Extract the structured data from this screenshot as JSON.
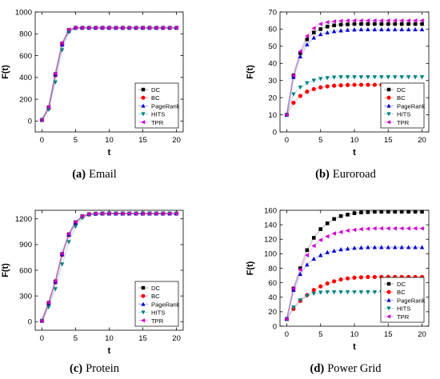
{
  "figure": {
    "legend_labels": [
      "DC",
      "BC",
      "PageRank",
      "HITS",
      "TPR"
    ],
    "series_colors": [
      "#000000",
      "#ff0000",
      "#0000cc",
      "#008080",
      "#cc00cc"
    ],
    "series_markers": [
      "square",
      "circle",
      "triangle-up",
      "triangle-down",
      "triangle-left"
    ]
  },
  "chart_data": [
    {
      "type": "line",
      "caption_tag": "(a)",
      "caption_name": "Email",
      "xlabel": "t",
      "ylabel": "F(t)",
      "xlim": [
        -1,
        21
      ],
      "ylim": [
        -100,
        1000
      ],
      "xticks": [
        0,
        5,
        10,
        15,
        20
      ],
      "yticks": [
        0,
        200,
        400,
        600,
        800,
        1000
      ],
      "grid": false,
      "legend_position": "bottom-right",
      "x": [
        0,
        1,
        2,
        3,
        4,
        5,
        6,
        7,
        8,
        9,
        10,
        11,
        12,
        13,
        14,
        15,
        16,
        17,
        18,
        19,
        20
      ],
      "series": [
        {
          "name": "DC",
          "values": [
            10,
            125,
            430,
            710,
            835,
            855,
            855,
            855,
            855,
            855,
            855,
            855,
            855,
            855,
            855,
            855,
            855,
            855,
            855,
            855,
            855
          ]
        },
        {
          "name": "BC",
          "values": [
            10,
            115,
            420,
            705,
            832,
            855,
            855,
            855,
            855,
            855,
            855,
            855,
            855,
            855,
            855,
            855,
            855,
            855,
            855,
            855,
            855
          ]
        },
        {
          "name": "PageRank",
          "values": [
            10,
            120,
            425,
            700,
            825,
            855,
            855,
            855,
            855,
            855,
            855,
            855,
            855,
            855,
            855,
            855,
            855,
            855,
            855,
            855,
            855
          ]
        },
        {
          "name": "HITS",
          "values": [
            10,
            105,
            355,
            650,
            815,
            852,
            855,
            855,
            855,
            855,
            855,
            855,
            855,
            855,
            855,
            855,
            855,
            855,
            855,
            855,
            855
          ]
        },
        {
          "name": "TPR",
          "values": [
            10,
            130,
            435,
            715,
            840,
            856,
            856,
            856,
            856,
            856,
            856,
            856,
            856,
            856,
            856,
            856,
            856,
            856,
            856,
            856,
            856
          ]
        }
      ]
    },
    {
      "type": "line",
      "caption_tag": "(b)",
      "caption_name": "Euroroad",
      "xlabel": "t",
      "ylabel": "F(t)",
      "xlim": [
        -1,
        21
      ],
      "ylim": [
        0,
        70
      ],
      "xticks": [
        0,
        5,
        10,
        15,
        20
      ],
      "yticks": [
        0,
        10,
        20,
        30,
        40,
        50,
        60,
        70
      ],
      "grid": false,
      "legend_position": "bottom-right",
      "x": [
        0,
        1,
        2,
        3,
        4,
        5,
        6,
        7,
        8,
        9,
        10,
        11,
        12,
        13,
        14,
        15,
        16,
        17,
        18,
        19,
        20
      ],
      "series": [
        {
          "name": "DC",
          "values": [
            10,
            33,
            46,
            54,
            58,
            60,
            61.5,
            62.2,
            62.6,
            62.8,
            63,
            63,
            63,
            63,
            63,
            63,
            63,
            63,
            63,
            63,
            63
          ]
        },
        {
          "name": "BC",
          "values": [
            10,
            17,
            21,
            23.5,
            25,
            26,
            26.6,
            27,
            27.2,
            27.4,
            27.5,
            27.5,
            27.5,
            27.5,
            27.5,
            27.5,
            27.5,
            27.5,
            27.5,
            27.5,
            27.5
          ]
        },
        {
          "name": "PageRank",
          "values": [
            10,
            32,
            44,
            51,
            55,
            57,
            58,
            58.7,
            59.2,
            59.5,
            59.7,
            59.8,
            59.8,
            59.8,
            59.8,
            59.8,
            59.8,
            59.8,
            59.8,
            59.8,
            59.8
          ]
        },
        {
          "name": "HITS",
          "values": [
            10,
            22,
            26,
            28.5,
            30,
            31,
            31.5,
            31.8,
            32,
            32,
            32,
            32,
            32,
            32,
            32,
            32,
            32,
            32,
            32,
            32,
            32
          ]
        },
        {
          "name": "TPR",
          "values": [
            10,
            33,
            47,
            56,
            60.5,
            63,
            64,
            64.5,
            64.8,
            65,
            65,
            65,
            65,
            65,
            65,
            65,
            65,
            65,
            65,
            65,
            65
          ]
        }
      ]
    },
    {
      "type": "line",
      "caption_tag": "(c)",
      "caption_name": "Protein",
      "xlabel": "t",
      "ylabel": "F(t)",
      "xlim": [
        -1,
        21
      ],
      "ylim": [
        -100,
        1300
      ],
      "xticks": [
        0,
        5,
        10,
        15,
        20
      ],
      "yticks": [
        0,
        300,
        600,
        900,
        1200
      ],
      "grid": false,
      "legend_position": "bottom-right",
      "x": [
        0,
        1,
        2,
        3,
        4,
        5,
        6,
        7,
        8,
        9,
        10,
        11,
        12,
        13,
        14,
        15,
        16,
        17,
        18,
        19,
        20
      ],
      "series": [
        {
          "name": "DC",
          "values": [
            10,
            220,
            470,
            790,
            1020,
            1160,
            1230,
            1255,
            1260,
            1262,
            1262,
            1262,
            1262,
            1262,
            1262,
            1262,
            1262,
            1262,
            1262,
            1262,
            1262
          ]
        },
        {
          "name": "BC",
          "values": [
            10,
            210,
            460,
            780,
            1010,
            1150,
            1225,
            1252,
            1260,
            1262,
            1262,
            1262,
            1262,
            1262,
            1262,
            1262,
            1262,
            1262,
            1262,
            1262,
            1262
          ]
        },
        {
          "name": "PageRank",
          "values": [
            10,
            215,
            465,
            785,
            1015,
            1155,
            1228,
            1254,
            1260,
            1262,
            1262,
            1262,
            1262,
            1262,
            1262,
            1262,
            1262,
            1262,
            1262,
            1262,
            1262
          ]
        },
        {
          "name": "HITS",
          "values": [
            10,
            170,
            380,
            670,
            930,
            1110,
            1210,
            1248,
            1258,
            1262,
            1262,
            1262,
            1262,
            1262,
            1262,
            1262,
            1262,
            1262,
            1262,
            1262,
            1262
          ]
        },
        {
          "name": "TPR",
          "values": [
            10,
            225,
            475,
            795,
            1025,
            1165,
            1232,
            1256,
            1261,
            1262,
            1262,
            1262,
            1262,
            1262,
            1262,
            1262,
            1262,
            1262,
            1262,
            1262,
            1262
          ]
        }
      ]
    },
    {
      "type": "line",
      "caption_tag": "(d)",
      "caption_name": "Power Grid",
      "xlabel": "t",
      "ylabel": "F(t)",
      "xlim": [
        -1,
        21
      ],
      "ylim": [
        0,
        160
      ],
      "xticks": [
        0,
        5,
        10,
        15,
        20
      ],
      "yticks": [
        0,
        20,
        40,
        60,
        80,
        100,
        120,
        140,
        160
      ],
      "grid": false,
      "legend_position": "bottom-right",
      "x": [
        0,
        1,
        2,
        3,
        4,
        5,
        6,
        7,
        8,
        9,
        10,
        11,
        12,
        13,
        14,
        15,
        16,
        17,
        18,
        19,
        20
      ],
      "series": [
        {
          "name": "DC",
          "values": [
            10,
            52,
            80,
            105,
            122,
            134,
            142,
            148,
            152,
            154,
            156,
            157,
            157.5,
            158,
            158,
            158,
            158,
            158,
            158,
            158,
            158
          ]
        },
        {
          "name": "BC",
          "values": [
            10,
            24,
            35,
            43,
            50,
            55,
            59,
            62,
            64.5,
            66,
            67,
            67.5,
            68,
            68,
            68,
            68,
            68,
            68,
            68,
            68,
            68
          ]
        },
        {
          "name": "PageRank",
          "values": [
            10,
            50,
            72,
            85,
            93,
            98,
            102,
            104,
            106,
            107,
            108,
            108.5,
            109,
            109,
            109,
            109,
            109,
            109,
            109,
            109,
            109
          ]
        },
        {
          "name": "HITS",
          "values": [
            10,
            26,
            36,
            42,
            45,
            46.5,
            47,
            47,
            47,
            47,
            47,
            47,
            47,
            47,
            47,
            47,
            47,
            47,
            47,
            47,
            47
          ]
        },
        {
          "name": "TPR",
          "values": [
            10,
            52,
            78,
            98,
            111,
            119,
            124,
            128,
            130,
            132,
            133,
            134,
            134.5,
            135,
            135,
            135,
            135,
            135,
            135,
            135,
            135
          ]
        }
      ]
    }
  ]
}
